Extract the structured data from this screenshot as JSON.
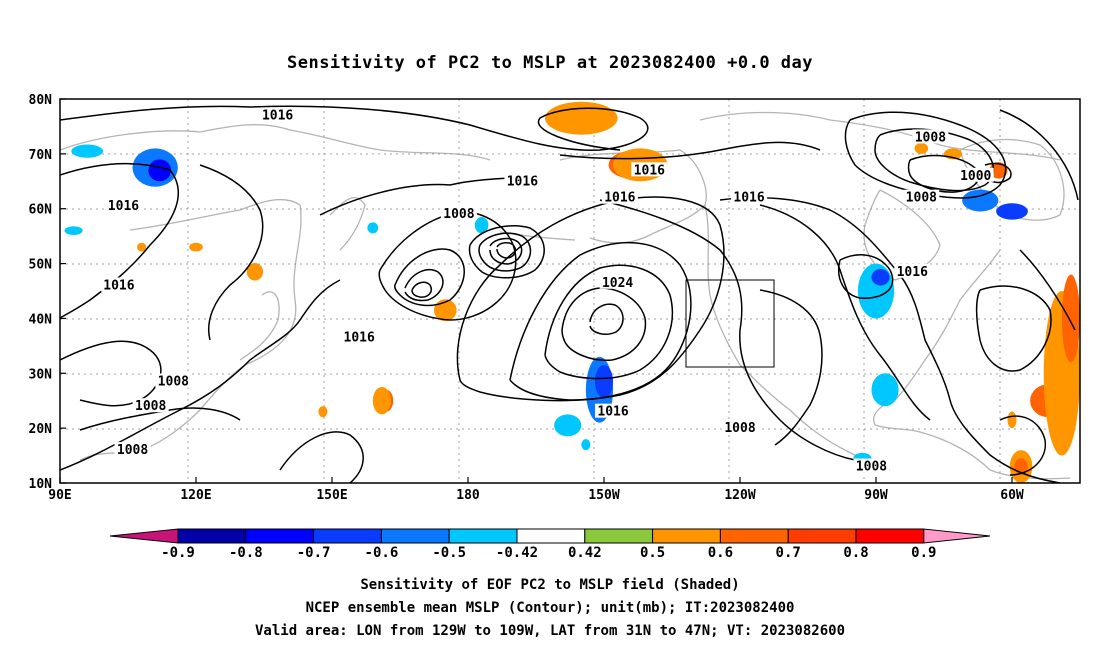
{
  "title": "Sensitivity of PC2 to MSLP at 2023082400 +0.0 day",
  "map": {
    "lon_labels": [
      "90E",
      "120E",
      "150E",
      "180",
      "150W",
      "120W",
      "90W",
      "60W"
    ],
    "lat_labels": [
      "80N",
      "70N",
      "60N",
      "50N",
      "40N",
      "30N",
      "20N",
      "10N"
    ],
    "extent": {
      "lon_min": 90,
      "lon_max": 315,
      "lat_min": 10,
      "lat_max": 80
    },
    "grid": "dotted",
    "valid_box": {
      "lon_min": 231,
      "lon_max": 251,
      "lat_min": 31,
      "lat_max": 47
    }
  },
  "contour_labels": [
    {
      "text": "1016",
      "lon": 138,
      "lat": 77
    },
    {
      "text": "1016",
      "lon": 220,
      "lat": 67
    },
    {
      "text": "1016",
      "lon": 104,
      "lat": 60.5
    },
    {
      "text": "1016",
      "lon": 103,
      "lat": 46
    },
    {
      "text": "1016",
      "lon": 156,
      "lat": 36.5
    },
    {
      "text": "1016",
      "lon": 192,
      "lat": 65
    },
    {
      "text": "1016",
      "lon": 213.5,
      "lat": 62
    },
    {
      "text": "1016",
      "lon": 242,
      "lat": 62
    },
    {
      "text": "1016",
      "lon": 278,
      "lat": 48.5
    },
    {
      "text": "1016",
      "lon": 212,
      "lat": 23
    },
    {
      "text": "1008",
      "lon": 178,
      "lat": 59
    },
    {
      "text": "1008",
      "lon": 282,
      "lat": 73
    },
    {
      "text": "1008",
      "lon": 280,
      "lat": 62
    },
    {
      "text": "1008",
      "lon": 115,
      "lat": 28.5
    },
    {
      "text": "1008",
      "lon": 110,
      "lat": 24
    },
    {
      "text": "1008",
      "lon": 106,
      "lat": 16
    },
    {
      "text": "1008",
      "lon": 240,
      "lat": 20
    },
    {
      "text": "1008",
      "lon": 269,
      "lat": 13
    },
    {
      "text": "1024",
      "lon": 213,
      "lat": 46.5
    },
    {
      "text": "1000",
      "lon": 292,
      "lat": 66
    }
  ],
  "colorbar": {
    "labels": [
      "-0.9",
      "-0.8",
      "-0.7",
      "-0.6",
      "-0.5",
      "-0.42",
      "0.42",
      "0.5",
      "0.6",
      "0.7",
      "0.8",
      "0.9"
    ],
    "colors": [
      "#0000a8",
      "#0000ff",
      "#0a3cff",
      "#0a78ff",
      "#00c8ff",
      "#ffffff",
      "#8cc83c",
      "#ff9600",
      "#ff6400",
      "#ff3c00",
      "#ff0000"
    ],
    "low_end_color": "#c81478",
    "high_end_color": "#ff9ac8"
  },
  "captions": [
    "Sensitivity of EOF PC2 to MSLP field (Shaded)",
    "NCEP ensemble mean MSLP (Contour); unit(mb); IT:2023082400",
    "Valid area: LON from 129W to 109W, LAT from 31N to 47N; VT: 2023082600"
  ],
  "shaded_regions": [
    {
      "level": "-0.6",
      "lon": 111,
      "lat": 67.5,
      "rx": 5,
      "ry": 3.5
    },
    {
      "level": "-0.8",
      "lon": 112,
      "lat": 67,
      "rx": 2.5,
      "ry": 2
    },
    {
      "level": "-0.5",
      "lon": 96,
      "lat": 70.5,
      "rx": 3.5,
      "ry": 1.2
    },
    {
      "level": "-0.5",
      "lon": 93,
      "lat": 56,
      "rx": 2,
      "ry": 0.8
    },
    {
      "level": "0.6",
      "lon": 205,
      "lat": 76,
      "rx": 5,
      "ry": 2.5
    },
    {
      "level": "0.5",
      "lon": 205,
      "lat": 76.5,
      "rx": 8,
      "ry": 3
    },
    {
      "level": "0.6",
      "lon": 216,
      "lat": 68,
      "rx": 5,
      "ry": 2.5
    },
    {
      "level": "0.5",
      "lon": 218,
      "lat": 68,
      "rx": 6,
      "ry": 3
    },
    {
      "level": "-0.6",
      "lon": 293,
      "lat": 61.5,
      "rx": 4,
      "ry": 2
    },
    {
      "level": "-0.7",
      "lon": 300,
      "lat": 59.5,
      "rx": 3.5,
      "ry": 1.5
    },
    {
      "level": "0.6",
      "lon": 297,
      "lat": 67,
      "rx": 2,
      "ry": 1.5
    },
    {
      "level": "0.5",
      "lon": 287,
      "lat": 70,
      "rx": 2,
      "ry": 1
    },
    {
      "level": "-0.5",
      "lon": 270,
      "lat": 45,
      "rx": 4,
      "ry": 5
    },
    {
      "level": "-0.7",
      "lon": 271,
      "lat": 47.5,
      "rx": 2,
      "ry": 1.5
    },
    {
      "level": "-0.5",
      "lon": 272,
      "lat": 27,
      "rx": 3,
      "ry": 3
    },
    {
      "level": "-0.6",
      "lon": 209,
      "lat": 27,
      "rx": 3,
      "ry": 6
    },
    {
      "level": "-0.7",
      "lon": 210,
      "lat": 28.5,
      "rx": 2,
      "ry": 3
    },
    {
      "level": "-0.5",
      "lon": 202,
      "lat": 20.5,
      "rx": 3,
      "ry": 2
    },
    {
      "level": "-0.5",
      "lon": 206,
      "lat": 17,
      "rx": 1,
      "ry": 1
    },
    {
      "level": "-0.5",
      "lon": 267,
      "lat": 14.5,
      "rx": 2,
      "ry": 1
    },
    {
      "level": "-0.5",
      "lon": 183,
      "lat": 57,
      "rx": 1.5,
      "ry": 1.5
    },
    {
      "level": "-0.5",
      "lon": 159,
      "lat": 56.5,
      "rx": 1.2,
      "ry": 1
    },
    {
      "level": "0.5",
      "lon": 175,
      "lat": 41.5,
      "rx": 2.5,
      "ry": 2
    },
    {
      "level": "0.6",
      "lon": 133.5,
      "lat": 48.5,
      "rx": 1.2,
      "ry": 1
    },
    {
      "level": "0.5",
      "lon": 133,
      "lat": 48.5,
      "rx": 1.8,
      "ry": 1.6
    },
    {
      "level": "0.6",
      "lon": 162,
      "lat": 25,
      "rx": 1.5,
      "ry": 2
    },
    {
      "level": "0.5",
      "lon": 161,
      "lat": 25,
      "rx": 2,
      "ry": 2.5
    },
    {
      "level": "0.7",
      "lon": 308,
      "lat": 25.5,
      "rx": 3,
      "ry": 2
    },
    {
      "level": "0.6",
      "lon": 308,
      "lat": 25,
      "rx": 4,
      "ry": 3
    },
    {
      "level": "0.5",
      "lon": 311,
      "lat": 30,
      "rx": 4,
      "ry": 15
    },
    {
      "level": "0.6",
      "lon": 313,
      "lat": 40,
      "rx": 2,
      "ry": 8
    },
    {
      "level": "0.5",
      "lon": 302,
      "lat": 13,
      "rx": 2.5,
      "ry": 3
    },
    {
      "level": "0.6",
      "lon": 302,
      "lat": 13,
      "rx": 1.5,
      "ry": 1.5
    },
    {
      "level": "0.5",
      "lon": 280,
      "lat": 71,
      "rx": 1.5,
      "ry": 1
    },
    {
      "level": "0.5",
      "lon": 108,
      "lat": 53,
      "rx": 1,
      "ry": 0.8
    },
    {
      "level": "0.5",
      "lon": 120,
      "lat": 53,
      "rx": 1.5,
      "ry": 0.8
    },
    {
      "level": "0.5",
      "lon": 148,
      "lat": 23,
      "rx": 1,
      "ry": 1
    },
    {
      "level": "0.5",
      "lon": 300,
      "lat": 21.5,
      "rx": 1,
      "ry": 1.5
    }
  ]
}
